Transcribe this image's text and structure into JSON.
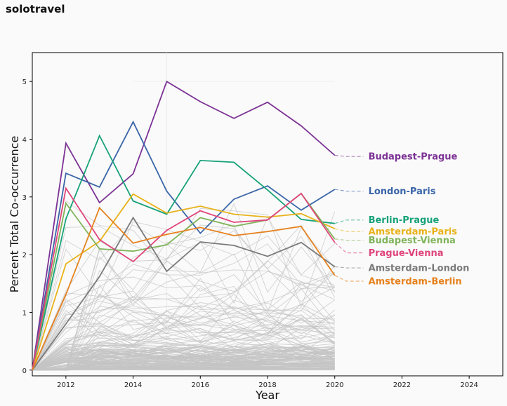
{
  "page_title": "solotravel",
  "chart_data": {
    "type": "line",
    "title": "",
    "xlabel": "Year",
    "ylabel": "Percent Total Co-occurrence",
    "xlim": [
      2011,
      2025
    ],
    "ylim": [
      -0.1,
      5.5
    ],
    "x_ticks": [
      2012,
      2014,
      2016,
      2018,
      2020,
      2022,
      2024
    ],
    "y_ticks": [
      0,
      1,
      2,
      3,
      4,
      5
    ],
    "x": [
      2011,
      2012,
      2013,
      2014,
      2015,
      2016,
      2017,
      2018,
      2019,
      2020
    ],
    "label_x": 2021,
    "background_series_color": "#c4c4c4",
    "background_series_note": "many unlabeled grey series below the highlighted ones",
    "series": [
      {
        "name": "Budapest-Prague",
        "color": "#7b3294",
        "label_y": 3.7,
        "values": [
          0,
          3.93,
          2.9,
          3.4,
          5.0,
          4.65,
          4.36,
          4.64,
          4.23,
          3.72
        ]
      },
      {
        "name": "London-Paris",
        "color": "#3a65a8",
        "label_y": 3.1,
        "values": [
          0,
          3.41,
          3.17,
          4.3,
          3.1,
          2.37,
          2.96,
          3.19,
          2.77,
          3.13
        ]
      },
      {
        "name": "Berlin-Prague",
        "color": "#17a278",
        "label_y": 2.6,
        "values": [
          0,
          2.62,
          4.06,
          2.93,
          2.7,
          3.63,
          3.6,
          3.12,
          2.61,
          2.54
        ]
      },
      {
        "name": "Amsterdam-Paris",
        "color": "#e8b21a",
        "label_y": 2.4,
        "values": [
          0,
          1.84,
          2.23,
          3.05,
          2.72,
          2.84,
          2.7,
          2.65,
          2.71,
          2.45
        ]
      },
      {
        "name": "Budapest-Vienna",
        "color": "#80b45a",
        "label_y": 2.25,
        "values": [
          0,
          2.89,
          2.1,
          2.06,
          2.17,
          2.64,
          2.49,
          2.6,
          3.06,
          2.27
        ]
      },
      {
        "name": "Prague-Vienna",
        "color": "#e0457b",
        "label_y": 2.03,
        "values": [
          0,
          3.15,
          2.26,
          1.88,
          2.42,
          2.76,
          2.56,
          2.6,
          3.06,
          2.21
        ]
      },
      {
        "name": "Amsterdam-London",
        "color": "#7a7a7a",
        "label_y": 1.77,
        "values": [
          0,
          0.8,
          1.62,
          2.64,
          1.71,
          2.22,
          2.16,
          1.97,
          2.21,
          1.79
        ]
      },
      {
        "name": "Amsterdam-Berlin",
        "color": "#e6821e",
        "label_y": 1.54,
        "values": [
          0,
          1.31,
          2.81,
          2.2,
          2.35,
          2.47,
          2.33,
          2.4,
          2.49,
          1.64
        ]
      }
    ]
  }
}
